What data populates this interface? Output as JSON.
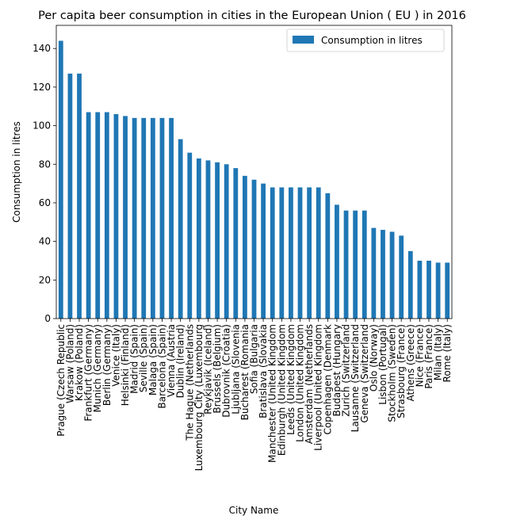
{
  "chart_data": {
    "type": "bar",
    "title": "Per capita beer consumption in cities in the European Union ( EU ) in 2016",
    "xlabel": "City Name",
    "ylabel": "Consumption in litres",
    "ylim": [
      0,
      152
    ],
    "yticks": [
      0,
      20,
      40,
      60,
      80,
      100,
      120,
      140
    ],
    "grid": false,
    "legend": {
      "position": "top-right",
      "entries": [
        "Consumption in litres"
      ]
    },
    "bar_color": "#1f77b4",
    "categories": [
      "Prague (Czech Republic",
      "Warsaw (Poland)",
      "Krakow (Poland)",
      "Frankfurt (Germany)",
      "Munich (Germany)",
      "Berlin (Germany)",
      "Venice (Italy)",
      "Helsinki (Finland)",
      "Madrid (Spain)",
      "Seville (Spain)",
      "Malaga (Spain)",
      "Barcelona (Spain)",
      "Vienna (Austria",
      "Dublin (Ireland)",
      "The Hague (Netherlands",
      "Luxembourg City (Luxembourg",
      "Reykjavik (Iceland)",
      "Brussels (Belgium)",
      "Dubrovnik (Croatia)",
      "Ljubljana (Slovenia",
      "Bucharest (Romania",
      "Sofia (Bulgaria",
      "Bratislava (Slovakia",
      "Manchester (United Kingdom",
      "Edinburgh (United Kingdom",
      "Leeds (United Kingdom",
      "London (United Kingdom",
      "Amsterdam (Netherlands",
      "Liverpool (United Kingdom",
      "Copenhagen (Denmark",
      "Budapest (Hungary",
      "Zurich (Switzerland",
      "Lausanne (Switzerland",
      "Geneva (Switzerland",
      "Oslo (Norway)",
      "Lisbon (Portugal)",
      "Stockholm (Sweden)",
      "Strasbourg (France)",
      "Athens (Greece)",
      "Nice (France)",
      "Paris (France)",
      "Milan (Italy)",
      "Rome (Italy)"
    ],
    "series": [
      {
        "name": "Consumption in litres",
        "values": [
          144,
          127,
          127,
          107,
          107,
          107,
          106,
          105,
          104,
          104,
          104,
          104,
          104,
          93,
          86,
          83,
          82,
          81,
          80,
          78,
          74,
          72,
          70,
          68,
          68,
          68,
          68,
          68,
          68,
          65,
          59,
          56,
          56,
          56,
          47,
          46,
          45,
          43,
          35,
          30,
          30,
          29,
          29
        ]
      }
    ]
  }
}
